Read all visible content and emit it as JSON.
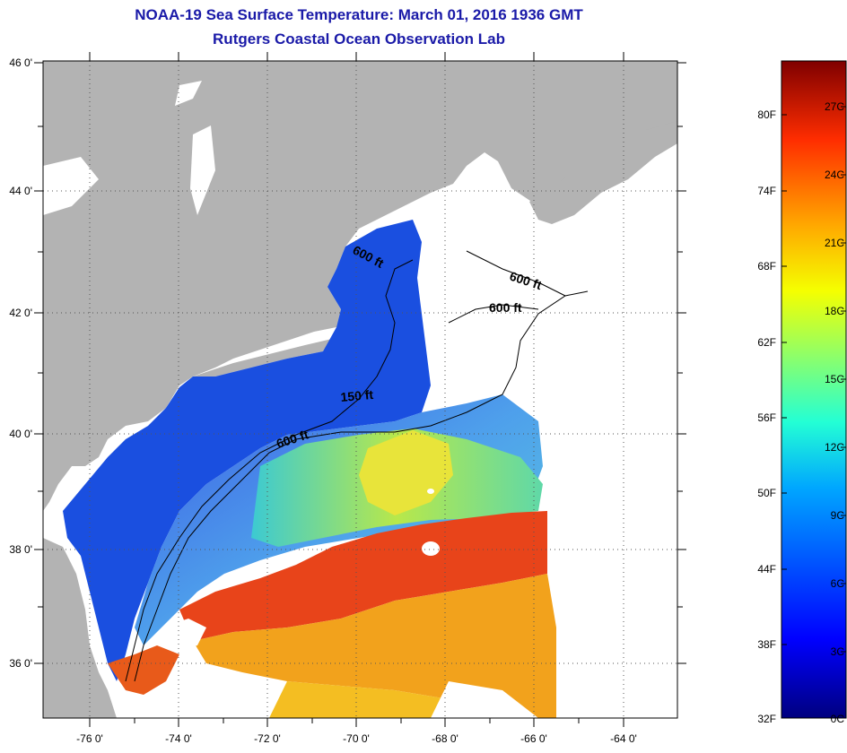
{
  "title": "NOAA-19 Sea Surface Temperature:  March 01, 2016 1936 GMT",
  "subtitle": "Rutgers Coastal Ocean Observation Lab",
  "map": {
    "lat_labels": [
      "46 0'",
      "44 0'",
      "42 0'",
      "40 0'",
      "38 0'",
      "36 0'"
    ],
    "lon_labels": [
      "-76 0'",
      "-74 0'",
      "-72 0'",
      "-70 0'",
      "-68 0'",
      "-66 0'",
      "-64 0'"
    ],
    "contour_labels": [
      "600 ft",
      "600 ft",
      "600 ft",
      "150 ft",
      "600 ft"
    ],
    "colors": {
      "land": "#b3b3b3",
      "cold": "#1a4fe0",
      "mid": "#3fc7d6",
      "warm": "#e5e22a",
      "hot": "#e8401a",
      "orange": "#f2a21c"
    }
  },
  "colorbar": {
    "fahrenheit": [
      "80F",
      "74F",
      "68F",
      "62F",
      "56F",
      "50F",
      "44F",
      "38F",
      "32F"
    ],
    "celsius": [
      "27C",
      "24C",
      "21C",
      "18C",
      "15C",
      "12C",
      "9C",
      "6C",
      "3C",
      "0C"
    ]
  }
}
